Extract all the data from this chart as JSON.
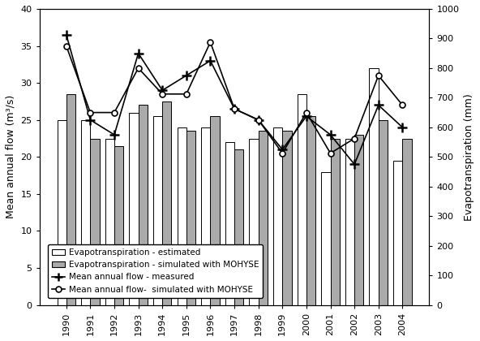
{
  "years": [
    1990,
    1991,
    1992,
    1993,
    1994,
    1995,
    1996,
    1997,
    1998,
    1999,
    2000,
    2001,
    2002,
    2003,
    2004
  ],
  "et_estimated": [
    25.0,
    25.0,
    22.5,
    26.0,
    25.5,
    24.0,
    24.0,
    22.0,
    22.5,
    24.0,
    28.5,
    18.0,
    22.5,
    32.0,
    19.5
  ],
  "et_simulated": [
    28.5,
    22.5,
    21.5,
    27.0,
    27.5,
    23.5,
    25.5,
    21.0,
    23.5,
    23.5,
    25.5,
    22.5,
    23.0,
    25.0,
    22.5
  ],
  "flow_measured": [
    36.5,
    25.0,
    23.0,
    34.0,
    29.0,
    31.0,
    33.0,
    26.5,
    25.0,
    21.0,
    25.5,
    23.0,
    19.0,
    27.0,
    24.0
  ],
  "flow_simulated": [
    35.0,
    26.0,
    26.0,
    32.0,
    28.5,
    28.5,
    35.5,
    26.5,
    25.0,
    20.5,
    26.0,
    20.5,
    22.5,
    31.0,
    27.0
  ],
  "ylabel_left": "Mean annual flow (m³/s)",
  "ylabel_right": "Evapotranspiration (mm)",
  "ylim_left": [
    0,
    40
  ],
  "ylim_right": [
    0,
    1000
  ],
  "yticks_left": [
    0,
    5,
    10,
    15,
    20,
    25,
    30,
    35,
    40
  ],
  "yticks_right": [
    0,
    100,
    200,
    300,
    400,
    500,
    600,
    700,
    800,
    900,
    1000
  ],
  "bar_width": 0.38,
  "color_et_estimated": "#ffffff",
  "color_et_simulated": "#aaaaaa",
  "legend_labels": [
    "Evapotranspiration - estimated",
    "Evapotranspiration - simulated with MOHYSE",
    "Mean annual flow - measured",
    "Mean annual flow-  simulated with MOHYSE"
  ]
}
